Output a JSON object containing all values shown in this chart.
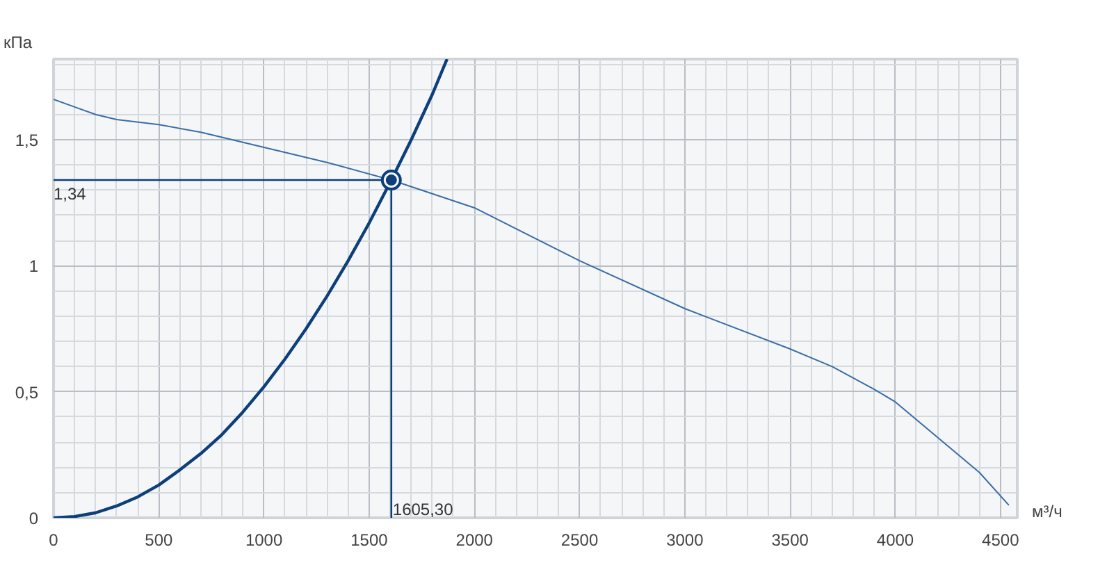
{
  "chart_data": {
    "type": "line",
    "xlabel": "м³/ч",
    "ylabel": "кПа",
    "xlim": [
      0,
      4580
    ],
    "ylim": [
      0,
      1.82
    ],
    "xticks": [
      0,
      500,
      1000,
      1500,
      2000,
      2500,
      3000,
      3500,
      4000,
      4500
    ],
    "yticks": [
      0,
      {
        "value": 0.5,
        "label": "0,5"
      },
      1,
      {
        "value": 1.5,
        "label": "1,5"
      }
    ],
    "grid": true,
    "marker": "none",
    "line_style": "solid",
    "series": [
      {
        "color": "#3a6ea5",
        "x": [
          0,
          100,
          200,
          300,
          500,
          700,
          1000,
          1300,
          1605.3,
          2000,
          2500,
          3000,
          3500,
          3700,
          3900,
          4000,
          4200,
          4400,
          4540
        ],
        "values": [
          1.66,
          1.63,
          1.6,
          1.58,
          1.56,
          1.53,
          1.47,
          1.41,
          1.34,
          1.23,
          1.02,
          0.83,
          0.67,
          0.6,
          0.51,
          0.46,
          0.32,
          0.18,
          0.05
        ]
      },
      {
        "color": "#0d3f7a",
        "x": [
          0,
          100,
          200,
          300,
          400,
          500,
          600,
          700,
          800,
          900,
          1000,
          1100,
          1200,
          1300,
          1400,
          1500,
          1605.3,
          1700,
          1800,
          1870
        ],
        "values": [
          0,
          0.005,
          0.02,
          0.047,
          0.083,
          0.13,
          0.19,
          0.255,
          0.33,
          0.42,
          0.52,
          0.63,
          0.75,
          0.88,
          1.02,
          1.17,
          1.34,
          1.5,
          1.68,
          1.82
        ]
      },
      {
        "type": "scatter",
        "marker": "circle",
        "color": "#0d3f7a",
        "x": [
          1605.3
        ],
        "values": [
          1.34
        ]
      }
    ],
    "ref_lines": [
      {
        "axis": "y",
        "value": 1.34,
        "label": "1,34",
        "color": "#0d3f7a"
      },
      {
        "axis": "x",
        "value": 1605.3,
        "label": "1605,30",
        "color": "#0d3f7a"
      }
    ]
  }
}
